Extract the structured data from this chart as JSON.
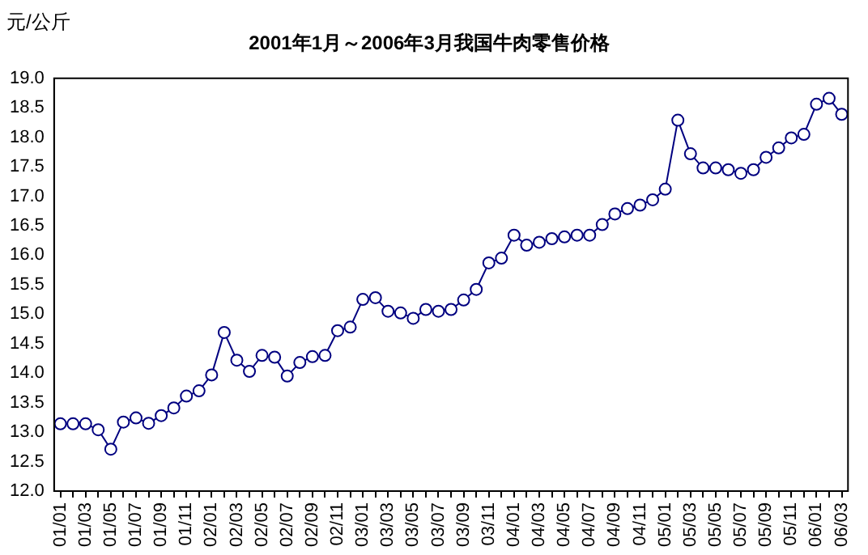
{
  "chart_data": {
    "type": "line",
    "title": "2001年1月～2006年3月我国牛肉零售价格",
    "ylabel": "元/公斤",
    "categories": [
      "01/01",
      null,
      "01/03",
      null,
      "01/05",
      null,
      "01/07",
      null,
      "01/09",
      null,
      "01/11",
      null,
      "02/01",
      null,
      "02/03",
      null,
      "02/05",
      null,
      "02/07",
      null,
      "02/09",
      null,
      "02/11",
      null,
      "03/01",
      null,
      "03/03",
      null,
      "03/05",
      null,
      "03/07",
      null,
      "03/09",
      null,
      "03/11",
      null,
      "04/01",
      null,
      "04/03",
      null,
      "04/05",
      null,
      "04/07",
      null,
      "04/09",
      null,
      "04/11",
      null,
      "05/01",
      null,
      "05/03",
      null,
      "05/05",
      null,
      "05/07",
      null,
      "05/09",
      null,
      "05/11",
      null,
      "06/01",
      null,
      "06/03"
    ],
    "series": [
      {
        "color": "#000080",
        "values": [
          13.14,
          13.14,
          13.14,
          13.04,
          12.71,
          13.17,
          13.24,
          13.15,
          13.28,
          13.41,
          13.61,
          13.7,
          13.97,
          14.69,
          14.22,
          14.03,
          14.3,
          14.27,
          13.95,
          14.18,
          14.28,
          14.3,
          14.72,
          14.78,
          15.25,
          15.28,
          15.05,
          15.02,
          14.93,
          15.08,
          15.05,
          15.08,
          15.24,
          15.42,
          15.87,
          15.95,
          16.34,
          16.17,
          16.22,
          16.28,
          16.31,
          16.34,
          16.34,
          16.52,
          16.7,
          16.79,
          16.85,
          16.94,
          17.12,
          18.29,
          17.72,
          17.48,
          17.48,
          17.45,
          17.39,
          17.45,
          17.66,
          17.82,
          17.99,
          18.05,
          18.56,
          18.66,
          18.39
        ]
      }
    ],
    "ylim": [
      12,
      19
    ],
    "yticks": [
      {
        "value": 12,
        "label": "12.0"
      },
      {
        "value": 12.5,
        "label": "12.5"
      },
      {
        "value": 13,
        "label": "13.0"
      },
      {
        "value": 13.5,
        "label": "13.5"
      },
      {
        "value": 14,
        "label": "14.0"
      },
      {
        "value": 14.5,
        "label": "14.5"
      },
      {
        "value": 15,
        "label": "15.0"
      },
      {
        "value": 15.5,
        "label": "15.5"
      },
      {
        "value": 16,
        "label": "16.0"
      },
      {
        "value": 16.5,
        "label": "16.5"
      },
      {
        "value": 17,
        "label": "17.0"
      },
      {
        "value": 17.5,
        "label": "17.5"
      },
      {
        "value": 18,
        "label": "18.0"
      },
      {
        "value": 18.5,
        "label": "18.5"
      },
      {
        "value": 19,
        "label": "19.0"
      }
    ],
    "grid": false,
    "legend": false,
    "marker": "circle",
    "line_style": "solid"
  }
}
